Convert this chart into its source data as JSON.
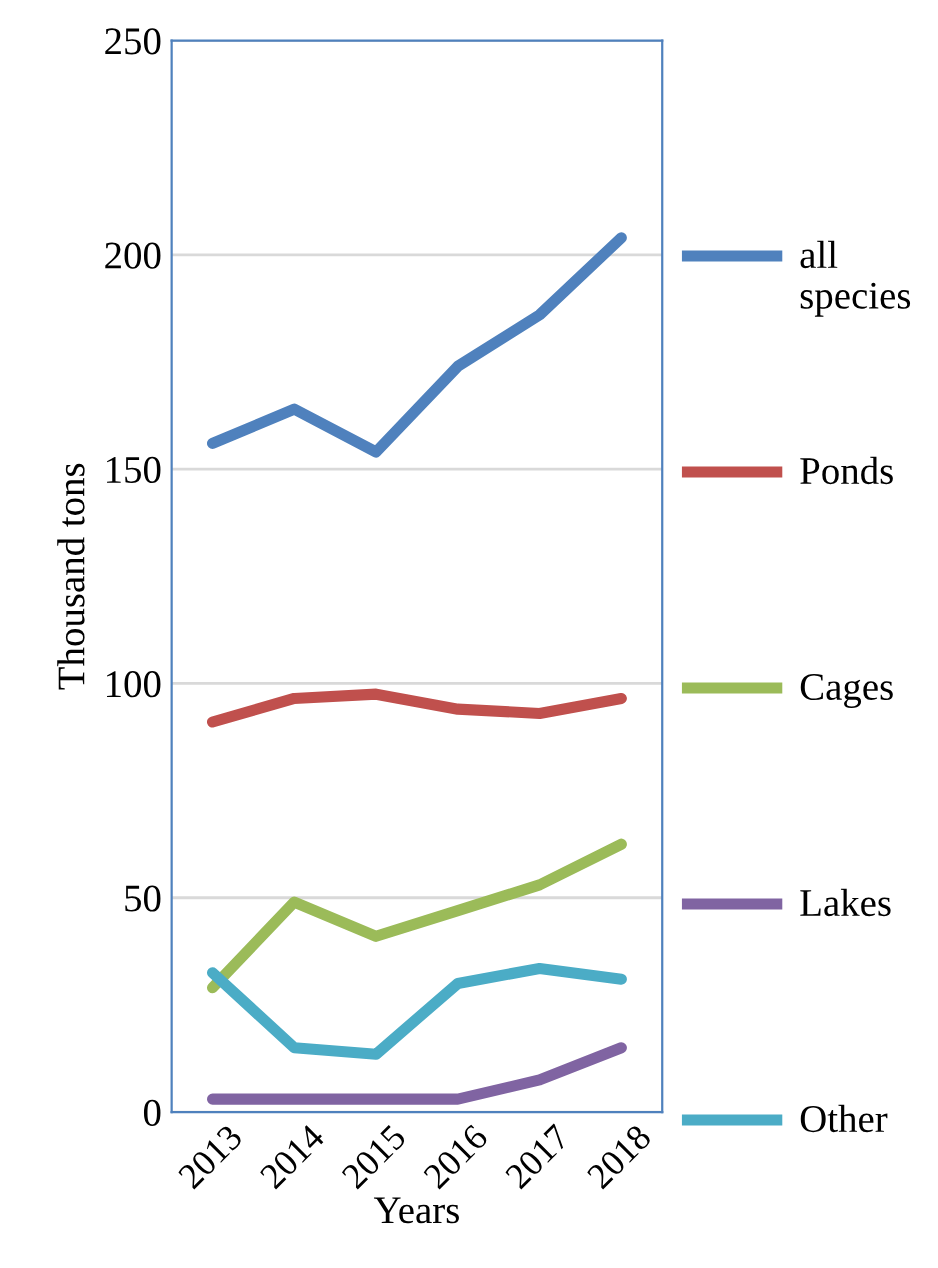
{
  "chart_data": {
    "type": "line",
    "xlabel": "Years",
    "ylabel": "Thousand tons",
    "categories": [
      "2013",
      "2014",
      "2015",
      "2016",
      "2017",
      "2018"
    ],
    "series": [
      {
        "name": "all species",
        "color": "#4f81bd",
        "values": [
          156,
          164,
          154,
          174,
          186,
          204
        ]
      },
      {
        "name": "Ponds",
        "color": "#c0504d",
        "values": [
          91,
          96.5,
          97.5,
          94,
          93,
          96.5
        ]
      },
      {
        "name": "Cages",
        "color": "#9bbb59",
        "values": [
          29,
          49,
          41,
          47,
          53,
          62.5
        ]
      },
      {
        "name": "Lakes",
        "color": "#8064a2",
        "values": [
          3,
          3,
          3,
          3,
          7.5,
          15
        ]
      },
      {
        "name": "Other",
        "color": "#4bacc6",
        "values": [
          32.5,
          15,
          13.5,
          30,
          33.5,
          31
        ]
      }
    ],
    "ylim": [
      0,
      250
    ],
    "yticks": [
      0,
      50,
      100,
      150,
      200,
      250
    ],
    "grid": "y",
    "legend": "right",
    "marker": "none",
    "line_style": "solid"
  }
}
